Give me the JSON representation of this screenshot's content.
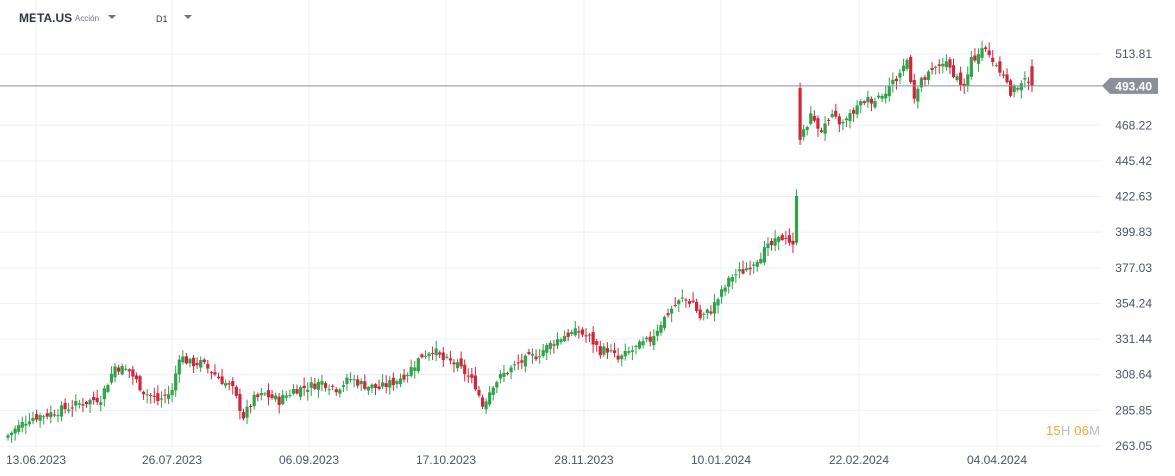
{
  "header": {
    "symbol": "META.US",
    "asset_type": "Acción",
    "timeframe": "D1"
  },
  "countdown": {
    "hours": "15",
    "hours_unit": "H",
    "minutes": "06",
    "minutes_unit": "M"
  },
  "colors": {
    "up": "#2fa24a",
    "down": "#d0263a",
    "price_line": "#8a8f98",
    "price_tag": "#8a8f98",
    "grid": "#eef0f3"
  },
  "chart_data": {
    "type": "candlestick",
    "title": "",
    "xlabel": "",
    "ylabel": "",
    "ylim": [
      263.05,
      530
    ],
    "y_ticks": [
      "513.81",
      "468.22",
      "445.42",
      "422.63",
      "399.83",
      "377.03",
      "354.24",
      "331.44",
      "308.64",
      "285.85",
      "263.05"
    ],
    "x_ticks": [
      "13.06.2023",
      "26.07.2023",
      "06.09.2023",
      "17.10.2023",
      "28.11.2023",
      "10.01.2024",
      "22.02.2024",
      "04.04.2024"
    ],
    "current_price": "493.40",
    "series": [
      {
        "date_start": "13.06.2023",
        "date_end": "~mid 04.2024",
        "close_path": [
          [
            0,
            270
          ],
          [
            6,
            281
          ],
          [
            12,
            284
          ],
          [
            20,
            290
          ],
          [
            26,
            294
          ],
          [
            30,
            314
          ],
          [
            34,
            311
          ],
          [
            38,
            298
          ],
          [
            42,
            292
          ],
          [
            46,
            298
          ],
          [
            48,
            321
          ],
          [
            51,
            316
          ],
          [
            54,
            316
          ],
          [
            57,
            311
          ],
          [
            60,
            305
          ],
          [
            63,
            299
          ],
          [
            66,
            282
          ],
          [
            69,
            293
          ],
          [
            72,
            296
          ],
          [
            76,
            292
          ],
          [
            80,
            299
          ],
          [
            84,
            301
          ],
          [
            88,
            304
          ],
          [
            92,
            300
          ],
          [
            96,
            306
          ],
          [
            100,
            302
          ],
          [
            104,
            300
          ],
          [
            108,
            304
          ],
          [
            112,
            310
          ],
          [
            116,
            321
          ],
          [
            119,
            325
          ],
          [
            122,
            318
          ],
          [
            125,
            316
          ],
          [
            128,
            310
          ],
          [
            131,
            302
          ],
          [
            133,
            289
          ],
          [
            136,
            303
          ],
          [
            140,
            311
          ],
          [
            144,
            317
          ],
          [
            148,
            321
          ],
          [
            152,
            328
          ],
          [
            156,
            334
          ],
          [
            160,
            336
          ],
          [
            163,
            332
          ],
          [
            166,
            324
          ],
          [
            168,
            325
          ],
          [
            171,
            318
          ],
          [
            174,
            323
          ],
          [
            177,
            327
          ],
          [
            180,
            331
          ],
          [
            183,
            342
          ],
          [
            186,
            351
          ],
          [
            189,
            357
          ],
          [
            192,
            355
          ],
          [
            194,
            345
          ],
          [
            197,
            350
          ],
          [
            200,
            361
          ],
          [
            203,
            372
          ],
          [
            206,
            375
          ],
          [
            209,
            381
          ],
          [
            212,
            388
          ],
          [
            215,
            393
          ],
          [
            218,
            398
          ],
          [
            220,
            390
          ],
          [
            222,
            461
          ],
          [
            225,
            474
          ],
          [
            228,
            466
          ],
          [
            231,
            473
          ],
          [
            234,
            469
          ],
          [
            237,
            477
          ],
          [
            240,
            484
          ],
          [
            243,
            485
          ],
          [
            246,
            491
          ],
          [
            249,
            498
          ],
          [
            252,
            510
          ],
          [
            254,
            487
          ],
          [
            256,
            496
          ],
          [
            259,
            502
          ],
          [
            262,
            509
          ],
          [
            265,
            502
          ],
          [
            268,
            492
          ],
          [
            270,
            509
          ],
          [
            273,
            518
          ],
          [
            276,
            510
          ],
          [
            279,
            502
          ],
          [
            281,
            488
          ],
          [
            284,
            497
          ],
          [
            287,
            493
          ]
        ]
      }
    ]
  }
}
